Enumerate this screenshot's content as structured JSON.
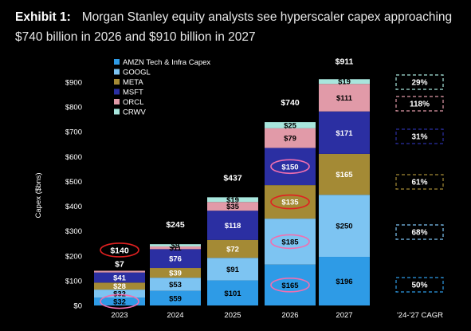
{
  "header": {
    "exhibit": "Exhibit 1:",
    "title": "Morgan Stanley equity analysts see hyperscaler capex approaching $740 billion in 2026 and $910 billion in 2027"
  },
  "colors": {
    "background": "#000000",
    "highlight_red": "#e02020",
    "highlight_pink": "#f06fb0"
  },
  "chart_data": {
    "type": "bar",
    "stacked": true,
    "title": "",
    "xlabel": "",
    "ylabel": "Capex ($bns)",
    "ylim": [
      0,
      900
    ],
    "yticks": [
      "$0",
      "$100",
      "$200",
      "$300",
      "$400",
      "$500",
      "$600",
      "$700",
      "$800",
      "$900"
    ],
    "grid": false,
    "legend_position": "top-left",
    "categories": [
      "2023",
      "2024",
      "2025",
      "2026",
      "2027"
    ],
    "series": [
      {
        "name": "AMZN Tech & Infra Capex",
        "color": "#2e9be6",
        "values": [
          32,
          59,
          101,
          165,
          196
        ],
        "labels": [
          "$32",
          "$59",
          "$101",
          "$165",
          "$196"
        ],
        "label_color": "#000000"
      },
      {
        "name": "GOOGL",
        "color": "#7dc4f2",
        "values": [
          32,
          53,
          91,
          185,
          250
        ],
        "labels": [
          "$32",
          "$53",
          "$91",
          "$185",
          "$250"
        ],
        "label_color": "#000000"
      },
      {
        "name": "META",
        "color": "#a48a35",
        "values": [
          28,
          39,
          72,
          135,
          165
        ],
        "labels": [
          "$28",
          "$39",
          "$72",
          "$135",
          "$165"
        ],
        "label_color": "#ffffff"
      },
      {
        "name": "MSFT",
        "color": "#2b2fa2",
        "values": [
          41,
          76,
          118,
          150,
          171
        ],
        "labels": [
          "$41",
          "$76",
          "$118",
          "$150",
          "$171"
        ],
        "label_color": "#ffffff"
      },
      {
        "name": "ORCL",
        "color": "#e19aa8",
        "values": [
          7,
          11,
          35,
          79,
          111
        ],
        "labels": [
          "",
          "$11",
          "$35",
          "$79",
          "$111"
        ],
        "label_color": "#000000"
      },
      {
        "name": "CRWV",
        "color": "#a8e6dd",
        "values": [
          0,
          9,
          19,
          25,
          19
        ],
        "labels": [
          "",
          "$9",
          "$19",
          "$25",
          "$19"
        ],
        "label_color": "#000000"
      }
    ],
    "above_bar_segment_labels": [
      "$7",
      "",
      "",
      "",
      ""
    ],
    "totals": [
      "$140",
      "$245",
      "$437",
      "$740",
      "$911"
    ],
    "cagr_header": "'24-'27 CAGR",
    "cagr": [
      {
        "series": "AMZN Tech & Infra Capex",
        "value": "50%",
        "color": "#2e9be6"
      },
      {
        "series": "GOOGL",
        "value": "68%",
        "color": "#7dc4f2"
      },
      {
        "series": "META",
        "value": "61%",
        "color": "#a48a35"
      },
      {
        "series": "MSFT",
        "value": "31%",
        "color": "#2b2fa2"
      },
      {
        "series": "ORCL",
        "value": "118%",
        "color": "#e19aa8"
      },
      {
        "series": "CRWV",
        "value": "29%",
        "color": "#a8e6dd"
      }
    ],
    "highlights": [
      {
        "category": "2023",
        "target": "total",
        "color": "red"
      },
      {
        "category": "2023",
        "target": "AMZN Tech & Infra Capex",
        "color": "pink"
      },
      {
        "category": "2026",
        "target": "AMZN Tech & Infra Capex",
        "color": "pink"
      },
      {
        "category": "2026",
        "target": "GOOGL",
        "color": "pink"
      },
      {
        "category": "2026",
        "target": "META",
        "color": "red"
      },
      {
        "category": "2026",
        "target": "MSFT",
        "color": "pink"
      }
    ]
  }
}
